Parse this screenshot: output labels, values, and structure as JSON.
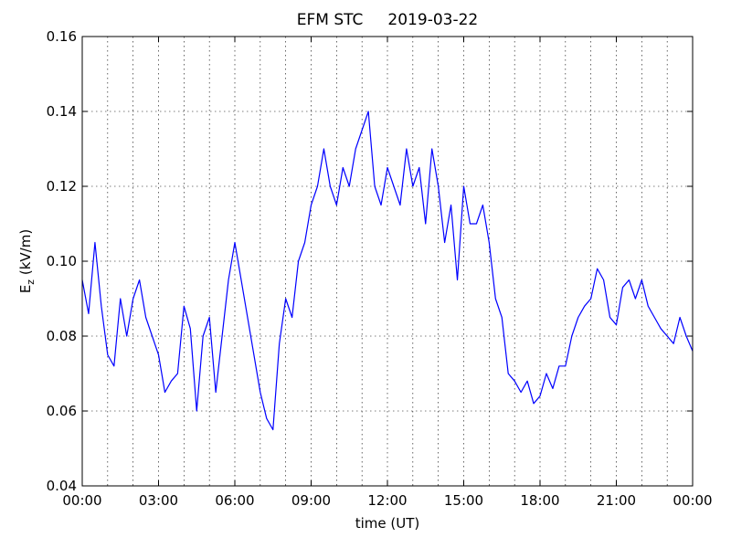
{
  "chart_data": {
    "type": "line",
    "title": "EFM STC     2019-03-22",
    "xlabel": "time (UT)",
    "ylabel": [
      "E",
      "z",
      " (kV/m)"
    ],
    "x": [
      0,
      0.25,
      0.5,
      0.75,
      1,
      1.25,
      1.5,
      1.75,
      2,
      2.25,
      2.5,
      2.75,
      3,
      3.25,
      3.5,
      3.75,
      4,
      4.25,
      4.5,
      4.75,
      5,
      5.25,
      5.5,
      5.75,
      6,
      6.25,
      6.5,
      6.75,
      7,
      7.25,
      7.5,
      7.75,
      8,
      8.25,
      8.5,
      8.75,
      9,
      9.25,
      9.5,
      9.75,
      10,
      10.25,
      10.5,
      10.75,
      11,
      11.25,
      11.5,
      11.75,
      12,
      12.25,
      12.5,
      12.75,
      13,
      13.25,
      13.5,
      13.75,
      14,
      14.25,
      14.5,
      14.75,
      15,
      15.25,
      15.5,
      15.75,
      16,
      16.25,
      16.5,
      16.75,
      17,
      17.25,
      17.5,
      17.75,
      18,
      18.25,
      18.5,
      18.75,
      19,
      19.25,
      19.5,
      19.75,
      20,
      20.25,
      20.5,
      20.75,
      21,
      21.25,
      21.5,
      21.75,
      22,
      22.25,
      22.5,
      22.75,
      23,
      23.25,
      23.5,
      23.75,
      24
    ],
    "series": [
      {
        "name": "Ez",
        "color": "#0000ff",
        "values": [
          0.095,
          0.086,
          0.105,
          0.088,
          0.075,
          0.072,
          0.09,
          0.08,
          0.09,
          0.095,
          0.085,
          0.08,
          0.075,
          0.065,
          0.068,
          0.07,
          0.088,
          0.082,
          0.06,
          0.08,
          0.085,
          0.065,
          0.08,
          0.095,
          0.105,
          0.095,
          0.085,
          0.075,
          0.065,
          0.058,
          0.055,
          0.078,
          0.09,
          0.085,
          0.1,
          0.105,
          0.115,
          0.12,
          0.13,
          0.12,
          0.115,
          0.125,
          0.12,
          0.13,
          0.135,
          0.14,
          0.12,
          0.115,
          0.125,
          0.12,
          0.115,
          0.13,
          0.12,
          0.125,
          0.11,
          0.13,
          0.12,
          0.105,
          0.115,
          0.095,
          0.12,
          0.11,
          0.11,
          0.115,
          0.105,
          0.09,
          0.085,
          0.07,
          0.068,
          0.065,
          0.068,
          0.062,
          0.064,
          0.07,
          0.066,
          0.072,
          0.072,
          0.08,
          0.085,
          0.088,
          0.09,
          0.098,
          0.095,
          0.085,
          0.083,
          0.093,
          0.095,
          0.09,
          0.095,
          0.088,
          0.085,
          0.082,
          0.08,
          0.078,
          0.085,
          0.08,
          0.076
        ]
      }
    ],
    "xlim": [
      0,
      24
    ],
    "xticks": [
      {
        "value": 0,
        "label": "00:00"
      },
      {
        "value": 3,
        "label": "03:00"
      },
      {
        "value": 6,
        "label": "06:00"
      },
      {
        "value": 9,
        "label": "09:00"
      },
      {
        "value": 12,
        "label": "12:00"
      },
      {
        "value": 15,
        "label": "15:00"
      },
      {
        "value": 18,
        "label": "18:00"
      },
      {
        "value": 21,
        "label": "21:00"
      },
      {
        "value": 24,
        "label": "00:00"
      }
    ],
    "x_gridlines": [
      1,
      2,
      3,
      4,
      5,
      6,
      7,
      8,
      9,
      10,
      11,
      12,
      13,
      14,
      15,
      16,
      17,
      18,
      19,
      20,
      21,
      22,
      23
    ],
    "ylim": [
      0.04,
      0.16
    ],
    "yticks": [
      0.04,
      0.06,
      0.08,
      {
        "value": 0.1,
        "label": "0.10"
      },
      0.12,
      0.14,
      0.16
    ],
    "grid": true
  }
}
